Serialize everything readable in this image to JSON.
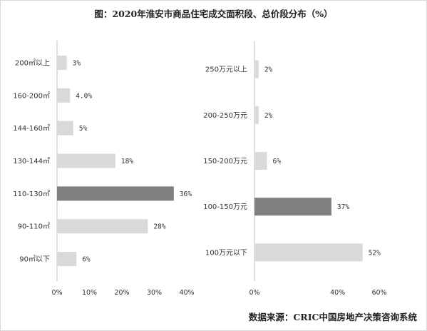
{
  "title": "图：2020年淮安市商品住宅成交面积段、总价段分布（%）",
  "source": "数据来源：CRIC中国房地产决策咨询系统",
  "colors": {
    "bar": "#d9d9d9",
    "highlight": "#7f7f7f",
    "axis": "#bfbfbf"
  },
  "chart_data": [
    {
      "type": "bar",
      "orientation": "horizontal",
      "categories": [
        "200㎡以上",
        "160-200㎡",
        "144-160㎡",
        "130-144㎡",
        "110-130㎡",
        "90-110㎡",
        "90㎡以下"
      ],
      "values": [
        3,
        4,
        5,
        18,
        36,
        28,
        6
      ],
      "data_labels": [
        "3%",
        "4.0%",
        "5%",
        "18%",
        "36%",
        "28%",
        "6%"
      ],
      "highlight_index": 4,
      "xlim": [
        0,
        40
      ],
      "xticks": [
        0,
        10,
        20,
        30,
        40
      ],
      "xtick_labels": [
        "0%",
        "10%",
        "20%",
        "30%",
        "40%"
      ],
      "title": "",
      "xlabel": "",
      "ylabel": ""
    },
    {
      "type": "bar",
      "orientation": "horizontal",
      "categories": [
        "250万元以上",
        "200-250万元",
        "150-200万元",
        "100-150万元",
        "100万元以下"
      ],
      "values": [
        2,
        2,
        6,
        37,
        52
      ],
      "data_labels": [
        "2%",
        "2%",
        "6%",
        "37%",
        "52%"
      ],
      "highlight_index": 3,
      "xlim": [
        0,
        60
      ],
      "xticks": [
        0,
        40,
        60
      ],
      "xtick_labels": [
        "0%",
        "40%",
        "60%"
      ],
      "title": "",
      "xlabel": "",
      "ylabel": ""
    }
  ]
}
